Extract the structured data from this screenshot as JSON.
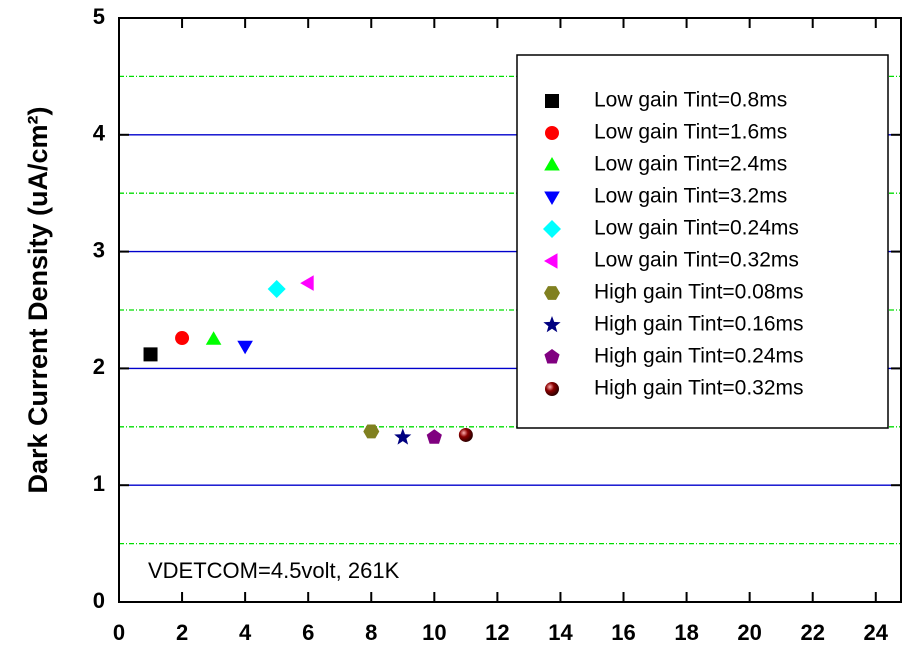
{
  "chart_data": {
    "type": "scatter",
    "ylabel": "Dark Current Density (uA/cm²)",
    "annotation": "VDETCOM=4.5volt, 261K",
    "xlim": [
      0,
      24.8
    ],
    "xticks": [
      0,
      2,
      4,
      6,
      8,
      10,
      12,
      14,
      16,
      18,
      20,
      22,
      24
    ],
    "ylim": [
      0,
      5
    ],
    "yticks": [
      0,
      1,
      2,
      3,
      4,
      5
    ],
    "minor_yticks": [
      0.5,
      1.5,
      2.5,
      3.5,
      4.5
    ],
    "grid": true,
    "major_grid_color": "#0000cc",
    "minor_grid_color": "#00dd00",
    "legend": "upper right",
    "series": [
      {
        "name": "Low gain Tint=0.8ms",
        "color": "#000000",
        "marker": "square",
        "x": [
          1
        ],
        "y": [
          2.12
        ]
      },
      {
        "name": "Low gain Tint=1.6ms",
        "color": "#ff0000",
        "marker": "circle",
        "x": [
          2
        ],
        "y": [
          2.26
        ]
      },
      {
        "name": "Low gain Tint=2.4ms",
        "color": "#00ff00",
        "marker": "triangle-up",
        "x": [
          3
        ],
        "y": [
          2.25
        ]
      },
      {
        "name": "Low gain Tint=3.2ms",
        "color": "#0000ff",
        "marker": "triangle-down",
        "x": [
          4
        ],
        "y": [
          2.19
        ]
      },
      {
        "name": "Low gain Tint=0.24ms",
        "color": "#00ffff",
        "marker": "diamond",
        "x": [
          5
        ],
        "y": [
          2.68
        ]
      },
      {
        "name": "Low gain Tint=0.32ms",
        "color": "#ff00ff",
        "marker": "triangle-left",
        "x": [
          6
        ],
        "y": [
          2.73
        ]
      },
      {
        "name": "High gain Tint=0.08ms",
        "color": "#808020",
        "marker": "hexagon",
        "x": [
          8
        ],
        "y": [
          1.46
        ]
      },
      {
        "name": "High gain Tint=0.16ms",
        "color": "#000080",
        "marker": "star",
        "x": [
          9
        ],
        "y": [
          1.41
        ]
      },
      {
        "name": "High gain Tint=0.24ms",
        "color": "#800080",
        "marker": "pentagon",
        "x": [
          10
        ],
        "y": [
          1.41
        ]
      },
      {
        "name": "High gain Tint=0.32ms",
        "color": "#8b0000",
        "marker": "sphere",
        "x": [
          11
        ],
        "y": [
          1.43
        ]
      }
    ]
  }
}
